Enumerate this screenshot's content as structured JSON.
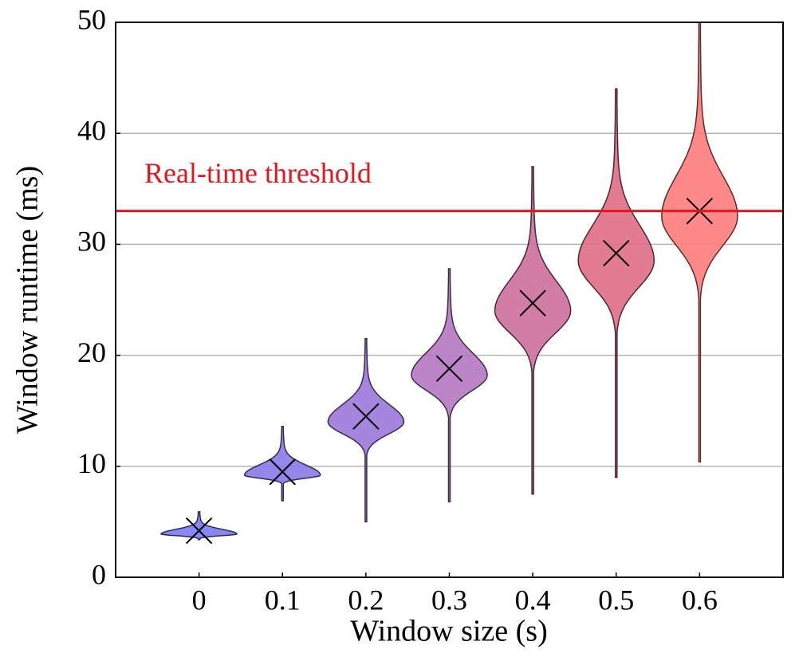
{
  "chart_data": {
    "type": "violin",
    "xlabel": "Window size (s)",
    "ylabel": "Window runtime (ms)",
    "xlim": [
      -0.1,
      0.7
    ],
    "xticks": [
      0,
      0.1,
      0.2,
      0.3,
      0.4,
      0.5,
      0.6
    ],
    "ylim": [
      0,
      50
    ],
    "yticks": [
      0,
      10,
      20,
      30,
      40,
      50
    ],
    "grid": true,
    "violins": [
      {
        "x": 0,
        "min": 3.4,
        "max": 5.9,
        "mode": 3.9,
        "mean": 4.2,
        "color": "#7b7bf4"
      },
      {
        "x": 0.1,
        "min": 6.9,
        "max": 13.6,
        "mode": 9.2,
        "mean": 9.5,
        "color": "#8a7ae8"
      },
      {
        "x": 0.2,
        "min": 5.0,
        "max": 21.5,
        "mode": 14.0,
        "mean": 14.5,
        "color": "#9c78da"
      },
      {
        "x": 0.3,
        "min": 6.8,
        "max": 27.8,
        "mode": 18.2,
        "mean": 18.8,
        "color": "#b478c2"
      },
      {
        "x": 0.4,
        "min": 7.5,
        "max": 37.0,
        "mode": 24.0,
        "mean": 24.7,
        "color": "#cc6f9c"
      },
      {
        "x": 0.5,
        "min": 9.0,
        "max": 44.0,
        "mode": 28.5,
        "mean": 29.2,
        "color": "#e06d86"
      },
      {
        "x": 0.6,
        "min": 10.4,
        "max": 50.0,
        "mode": 32.5,
        "mean": 33.0,
        "color": "#ff7b7b"
      }
    ],
    "threshold": {
      "value": 33,
      "label": "Real-time threshold",
      "color": "#e8141c"
    }
  }
}
